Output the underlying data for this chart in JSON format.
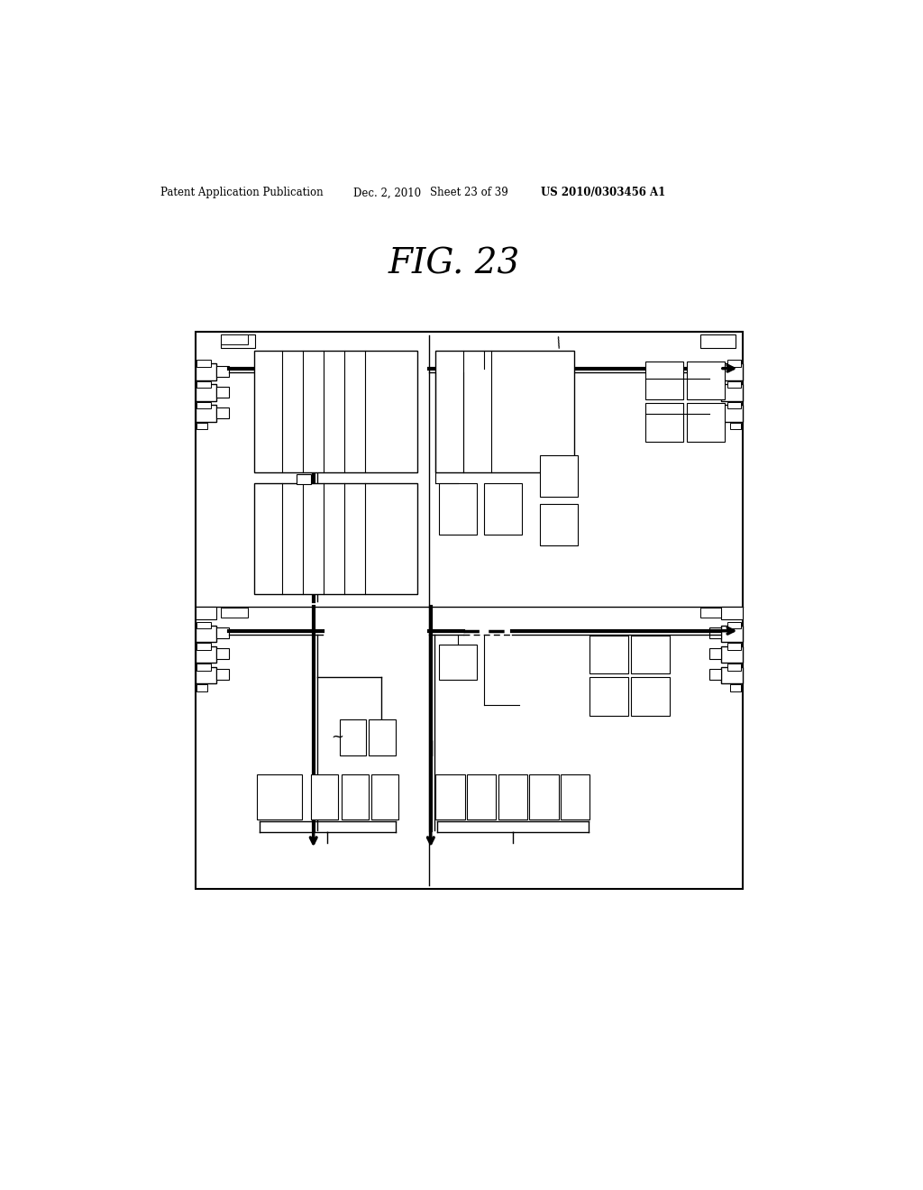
{
  "bg_color": "#ffffff",
  "title": "FIG. 23",
  "header_left": "Patent Application Publication",
  "header_mid": "Dec. 2, 2010   Sheet 23 of 39",
  "header_right": "US 2010/0303456 A1",
  "fig_width": 10.24,
  "fig_height": 13.2,
  "dpi": 100
}
